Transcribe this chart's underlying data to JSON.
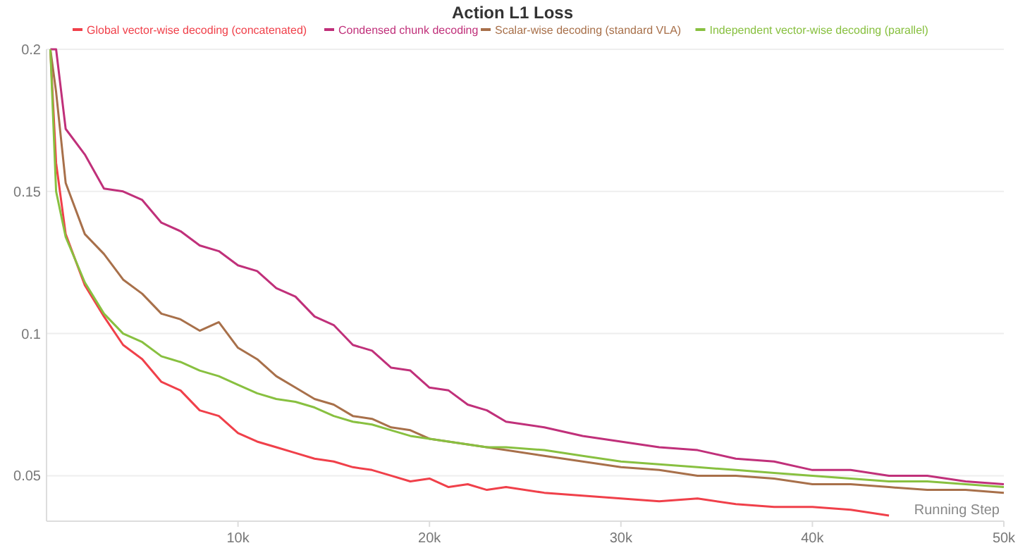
{
  "chart_data": {
    "type": "line",
    "title": "Action L1 Loss",
    "xlabel": "Running Step",
    "legend": "top",
    "grid": "y",
    "marker": "none",
    "line_style": "solid",
    "x": [
      200,
      500,
      1000,
      2000,
      3000,
      4000,
      5000,
      6000,
      7000,
      8000,
      9000,
      10000,
      11000,
      12000,
      13000,
      14000,
      15000,
      16000,
      17000,
      18000,
      19000,
      20000,
      21000,
      22000,
      23000,
      24000,
      26000,
      28000,
      30000,
      32000,
      34000,
      36000,
      38000,
      40000,
      42000,
      44000,
      46000,
      48000,
      50000
    ],
    "xlim": [
      0,
      50000
    ],
    "xticks": [
      {
        "value": 10000,
        "label": "10k"
      },
      {
        "value": 20000,
        "label": "20k"
      },
      {
        "value": 30000,
        "label": "30k"
      },
      {
        "value": 40000,
        "label": "40k"
      },
      {
        "value": 50000,
        "label": "50k"
      }
    ],
    "ylim": [
      0.034,
      0.2
    ],
    "yticks": [
      0.05,
      0.1,
      0.15,
      0.2
    ],
    "series": [
      {
        "name": "Global vector-wise decoding (concatenated)",
        "color": "#f0404a",
        "values": [
          0.2,
          0.16,
          0.135,
          0.117,
          0.106,
          0.096,
          0.091,
          0.083,
          0.08,
          0.073,
          0.071,
          0.065,
          0.062,
          0.06,
          0.058,
          0.056,
          0.055,
          0.053,
          0.052,
          0.05,
          0.048,
          0.049,
          0.046,
          0.047,
          0.045,
          0.046,
          0.044,
          0.043,
          0.042,
          0.041,
          0.042,
          0.04,
          0.039,
          0.039,
          0.038,
          0.036,
          null,
          null,
          null
        ]
      },
      {
        "name": "Condensed chunk decoding",
        "color": "#c0307a",
        "values": [
          0.2,
          0.2,
          0.172,
          0.163,
          0.151,
          0.15,
          0.147,
          0.139,
          0.136,
          0.131,
          0.129,
          0.124,
          0.122,
          0.116,
          0.113,
          0.106,
          0.103,
          0.096,
          0.094,
          0.088,
          0.087,
          0.081,
          0.08,
          0.075,
          0.073,
          0.069,
          0.067,
          0.064,
          0.062,
          0.06,
          0.059,
          0.056,
          0.055,
          0.052,
          0.052,
          0.05,
          0.05,
          0.048,
          0.047
        ]
      },
      {
        "name": "Scalar-wise decoding (standard VLA)",
        "color": "#a8704a",
        "values": [
          0.2,
          0.185,
          0.153,
          0.135,
          0.128,
          0.119,
          0.114,
          0.107,
          0.105,
          0.101,
          0.104,
          0.095,
          0.091,
          0.085,
          0.081,
          0.077,
          0.075,
          0.071,
          0.07,
          0.067,
          0.066,
          0.063,
          0.062,
          0.061,
          0.06,
          0.059,
          0.057,
          0.055,
          0.053,
          0.052,
          0.05,
          0.05,
          0.049,
          0.047,
          0.047,
          0.046,
          0.045,
          0.045,
          0.044
        ]
      },
      {
        "name": "Independent vector-wise decoding (parallel)",
        "color": "#88c040",
        "values": [
          0.2,
          0.15,
          0.134,
          0.118,
          0.107,
          0.1,
          0.097,
          0.092,
          0.09,
          0.087,
          0.085,
          0.082,
          0.079,
          0.077,
          0.076,
          0.074,
          0.071,
          0.069,
          0.068,
          0.066,
          0.064,
          0.063,
          0.062,
          0.061,
          0.06,
          0.06,
          0.059,
          0.057,
          0.055,
          0.054,
          0.053,
          0.052,
          0.051,
          0.05,
          0.049,
          0.048,
          0.048,
          0.047,
          0.046
        ]
      }
    ]
  }
}
